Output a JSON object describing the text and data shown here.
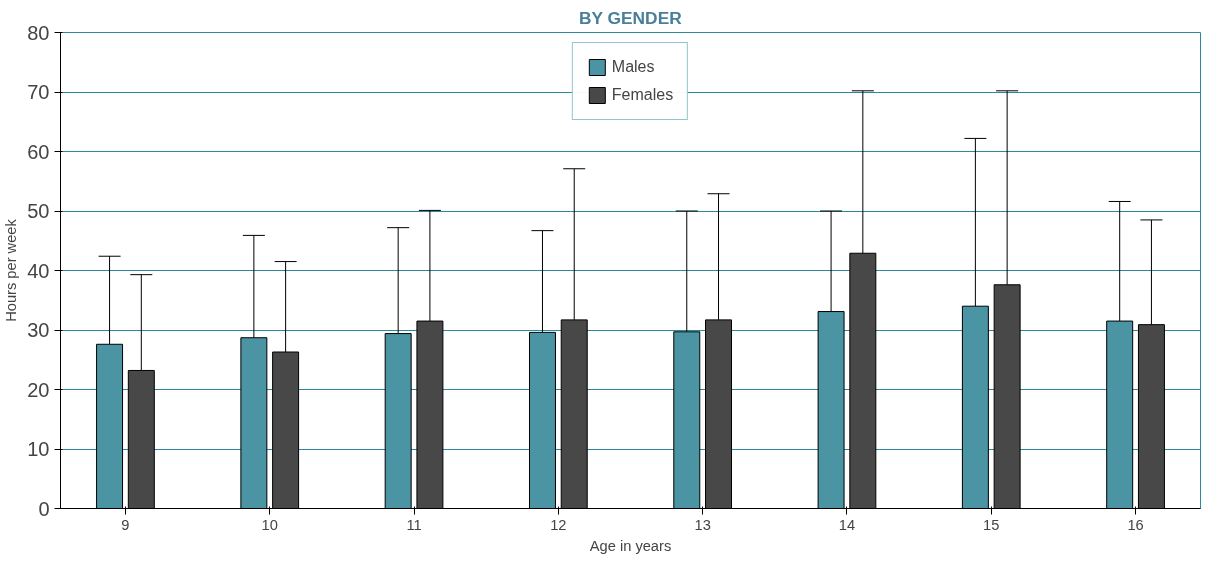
{
  "chart_data": {
    "type": "bar",
    "title": "BY GENDER",
    "xlabel": "Age in years",
    "ylabel": "Hours per week",
    "categories": [
      "9",
      "10",
      "11",
      "12",
      "13",
      "14",
      "15",
      "16"
    ],
    "series": [
      {
        "name": "Males",
        "color": "#4a94a4",
        "values": [
          27.6,
          28.7,
          29.4,
          29.6,
          29.7,
          33.1,
          34.0,
          31.5
        ],
        "errors": [
          [
            27.6,
            42.4
          ],
          [
            28.7,
            45.9
          ],
          [
            29.4,
            47.2
          ],
          [
            29.6,
            46.7
          ],
          [
            29.7,
            50.0
          ],
          [
            33.1,
            50.0
          ],
          [
            34.0,
            62.2
          ],
          [
            31.5,
            51.6
          ]
        ]
      },
      {
        "name": "Females",
        "color": "#484848",
        "values": [
          23.2,
          26.3,
          31.5,
          31.7,
          31.7,
          42.9,
          37.6,
          30.9
        ],
        "errors": [
          [
            23.2,
            39.3
          ],
          [
            26.3,
            41.5
          ],
          [
            31.5,
            50.1
          ],
          [
            31.7,
            57.1
          ],
          [
            31.7,
            52.9
          ],
          [
            42.9,
            70.2
          ],
          [
            37.6,
            70.2
          ],
          [
            30.9,
            48.5
          ]
        ]
      }
    ],
    "ylim": [
      0,
      80
    ],
    "yticks": [
      0,
      10,
      20,
      30,
      40,
      50,
      60,
      70,
      80
    ],
    "grid": "y",
    "legend": "top"
  }
}
